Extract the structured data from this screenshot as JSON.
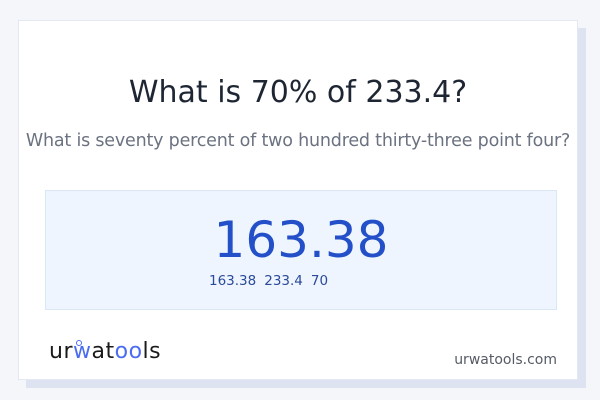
{
  "header": {
    "title": "What is 70% of 233.4?",
    "subtitle": "What is seventy percent of two hundred thirty-three point four?"
  },
  "result": {
    "answer": "163.38",
    "values": [
      "163.38",
      "233.4",
      "70"
    ]
  },
  "footer": {
    "logo": "urwatools",
    "site": "urwatools.com"
  },
  "colors": {
    "accent": "#2350c8",
    "result_bg": "#eef5fe",
    "logo_accent": "#4a6cf0"
  }
}
